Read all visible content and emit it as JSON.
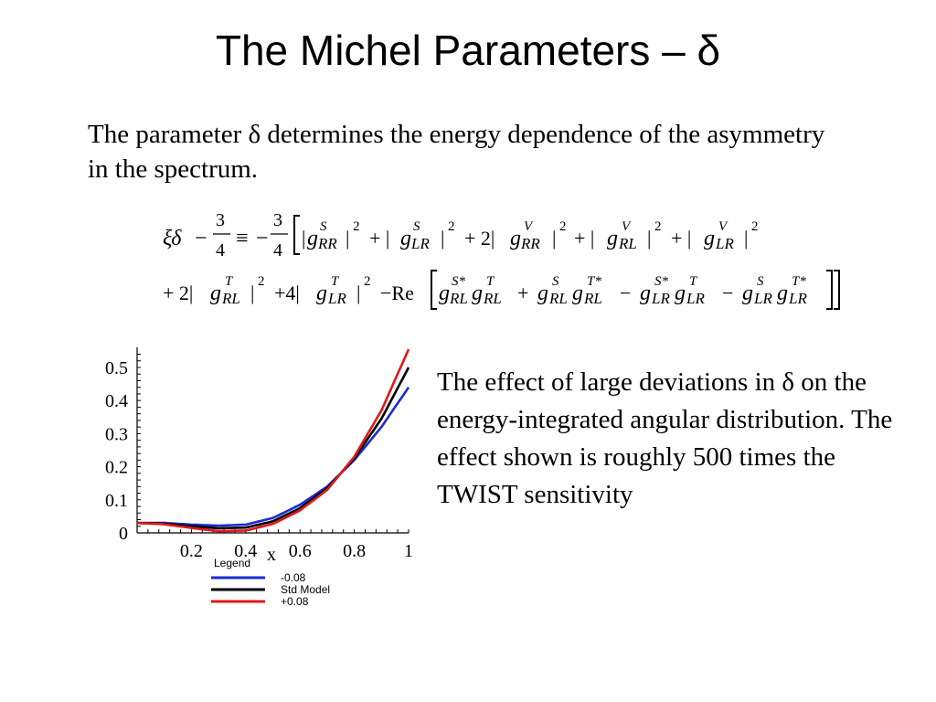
{
  "slide": {
    "title": "The Michel Parameters – δ",
    "intro": "The parameter δ determines the energy dependence of the asymmetry in the spectrum.",
    "side_text": "The effect of large deviations in δ on the energy-integrated angular distribution.  The effect shown is roughly 500 times the TWIST sensitivity"
  },
  "chart_data": {
    "type": "line",
    "xlabel": "x",
    "ylabel": "",
    "xlim": [
      0,
      1
    ],
    "ylim": [
      0,
      0.55
    ],
    "x_ticks": [
      "0.2",
      "0.4",
      "0.6",
      "0.8",
      "1"
    ],
    "y_ticks": [
      "0",
      "0.1",
      "0.2",
      "0.3",
      "0.4",
      "0.5"
    ],
    "legend": {
      "title": "Legend",
      "placement": "bottom"
    },
    "series": [
      {
        "name": "-0.08",
        "color": "#1a2bd6",
        "x": [
          0,
          0.1,
          0.2,
          0.3,
          0.4,
          0.5,
          0.6,
          0.7,
          0.8,
          0.9,
          1.0
        ],
        "y": [
          0.03,
          0.03,
          0.025,
          0.022,
          0.025,
          0.045,
          0.085,
          0.14,
          0.22,
          0.32,
          0.44
        ]
      },
      {
        "name": "Std Model",
        "color": "#000000",
        "x": [
          0,
          0.1,
          0.2,
          0.3,
          0.4,
          0.5,
          0.6,
          0.7,
          0.8,
          0.9,
          1.0
        ],
        "y": [
          0.03,
          0.028,
          0.02,
          0.014,
          0.016,
          0.035,
          0.075,
          0.135,
          0.225,
          0.345,
          0.5
        ]
      },
      {
        "name": "+0.08",
        "color": "#e01818",
        "x": [
          0,
          0.1,
          0.2,
          0.3,
          0.4,
          0.5,
          0.6,
          0.7,
          0.8,
          0.9,
          1.0
        ],
        "y": [
          0.03,
          0.026,
          0.015,
          0.005,
          0.007,
          0.027,
          0.068,
          0.13,
          0.23,
          0.37,
          0.555
        ]
      }
    ]
  }
}
